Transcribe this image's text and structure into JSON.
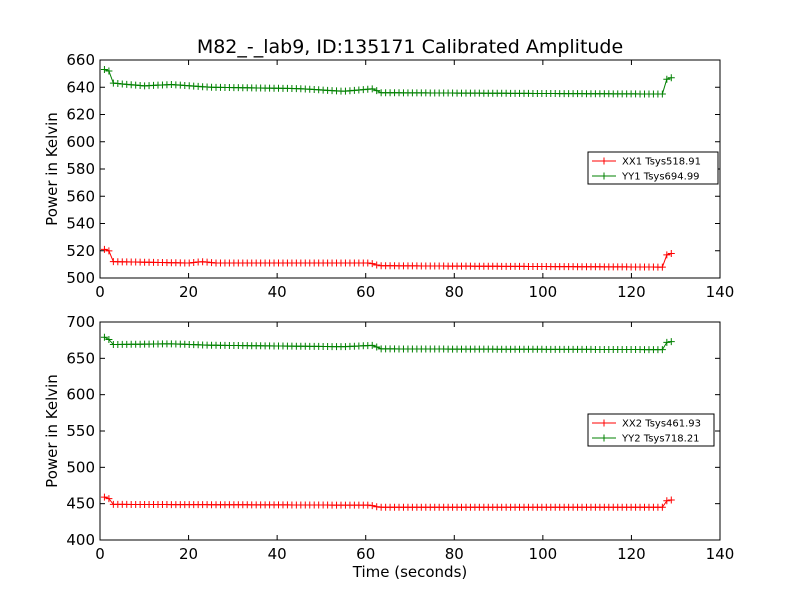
{
  "chart_data": {
    "title": "M82_-_lab9, ID:135171 Calibrated Amplitude",
    "xlabel": "Time (seconds)",
    "colors": {
      "xx": "#ff0000",
      "yy": "#008000"
    },
    "panels": [
      {
        "type": "line",
        "ylabel": "Power in Kelvin",
        "xlim": [
          0,
          140
        ],
        "ylim": [
          500,
          660
        ],
        "xticks": [
          0,
          20,
          40,
          60,
          80,
          100,
          120,
          140
        ],
        "yticks": [
          500,
          520,
          540,
          560,
          580,
          600,
          620,
          640,
          660
        ],
        "grid": false,
        "legend_position": "center-right",
        "marker": "plus",
        "sampling": {
          "t_start": 1,
          "t_end": 129,
          "points": 128
        },
        "series": [
          {
            "name": "XX1 Tsys518.91",
            "color_key": "xx",
            "level_profile": [
              {
                "t": 1,
                "value": 521
              },
              {
                "t": 2,
                "value": 520
              },
              {
                "t": 3,
                "value": 512
              },
              {
                "t": 20,
                "value": 511
              },
              {
                "t": 23,
                "value": 512
              },
              {
                "t": 26,
                "value": 511
              },
              {
                "t": 61,
                "value": 511
              },
              {
                "t": 63,
                "value": 509
              },
              {
                "t": 127,
                "value": 508
              },
              {
                "t": 128,
                "value": 517
              },
              {
                "t": 129,
                "value": 518
              }
            ]
          },
          {
            "name": "YY1 Tsys694.99",
            "color_key": "yy",
            "level_profile": [
              {
                "t": 1,
                "value": 653
              },
              {
                "t": 2,
                "value": 652
              },
              {
                "t": 3,
                "value": 643
              },
              {
                "t": 10,
                "value": 641
              },
              {
                "t": 16,
                "value": 642
              },
              {
                "t": 25,
                "value": 640
              },
              {
                "t": 45,
                "value": 639
              },
              {
                "t": 55,
                "value": 637
              },
              {
                "t": 62,
                "value": 639
              },
              {
                "t": 63,
                "value": 636
              },
              {
                "t": 127,
                "value": 635
              },
              {
                "t": 128,
                "value": 646
              },
              {
                "t": 129,
                "value": 647
              }
            ]
          }
        ]
      },
      {
        "type": "line",
        "ylabel": "Power in Kelvin",
        "xlabel": "Time (seconds)",
        "xlim": [
          0,
          140
        ],
        "ylim": [
          400,
          700
        ],
        "xticks": [
          0,
          20,
          40,
          60,
          80,
          100,
          120,
          140
        ],
        "yticks": [
          400,
          450,
          500,
          550,
          600,
          650,
          700
        ],
        "grid": false,
        "legend_position": "center-right",
        "marker": "plus",
        "sampling": {
          "t_start": 1,
          "t_end": 129,
          "points": 128
        },
        "series": [
          {
            "name": "XX2 Tsys461.93",
            "color_key": "xx",
            "level_profile": [
              {
                "t": 1,
                "value": 459
              },
              {
                "t": 2,
                "value": 457
              },
              {
                "t": 3,
                "value": 449
              },
              {
                "t": 56,
                "value": 448
              },
              {
                "t": 61,
                "value": 448
              },
              {
                "t": 63,
                "value": 445
              },
              {
                "t": 127,
                "value": 445
              },
              {
                "t": 128,
                "value": 454
              },
              {
                "t": 129,
                "value": 455
              }
            ]
          },
          {
            "name": "YY2 Tsys718.21",
            "color_key": "yy",
            "level_profile": [
              {
                "t": 1,
                "value": 679
              },
              {
                "t": 2,
                "value": 676
              },
              {
                "t": 3,
                "value": 669
              },
              {
                "t": 16,
                "value": 670
              },
              {
                "t": 25,
                "value": 668
              },
              {
                "t": 55,
                "value": 666
              },
              {
                "t": 62,
                "value": 668
              },
              {
                "t": 63,
                "value": 663
              },
              {
                "t": 127,
                "value": 662
              },
              {
                "t": 128,
                "value": 672
              },
              {
                "t": 129,
                "value": 673
              }
            ]
          }
        ]
      }
    ]
  }
}
